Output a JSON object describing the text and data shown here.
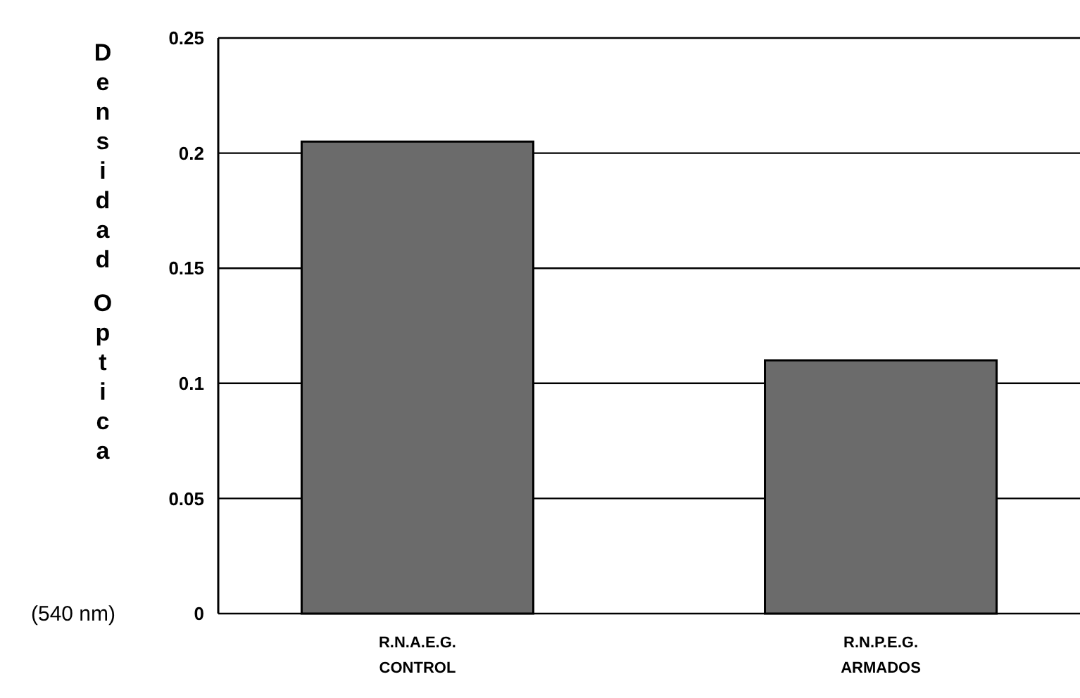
{
  "chart_data": {
    "type": "bar",
    "ylabel": "Densidad Optica",
    "annotations": [
      "(540 nm)"
    ],
    "categories": [
      "R.N.A.E.G.\nCONTROL",
      "R.N.P.E.G.\nARMADOS"
    ],
    "values": [
      0.205,
      0.11
    ],
    "color": "#6b6b6b",
    "ylim": [
      0,
      0.25
    ],
    "yticks": [
      0,
      0.05,
      0.1,
      0.15,
      0.2,
      0.25
    ],
    "grid": "y"
  }
}
